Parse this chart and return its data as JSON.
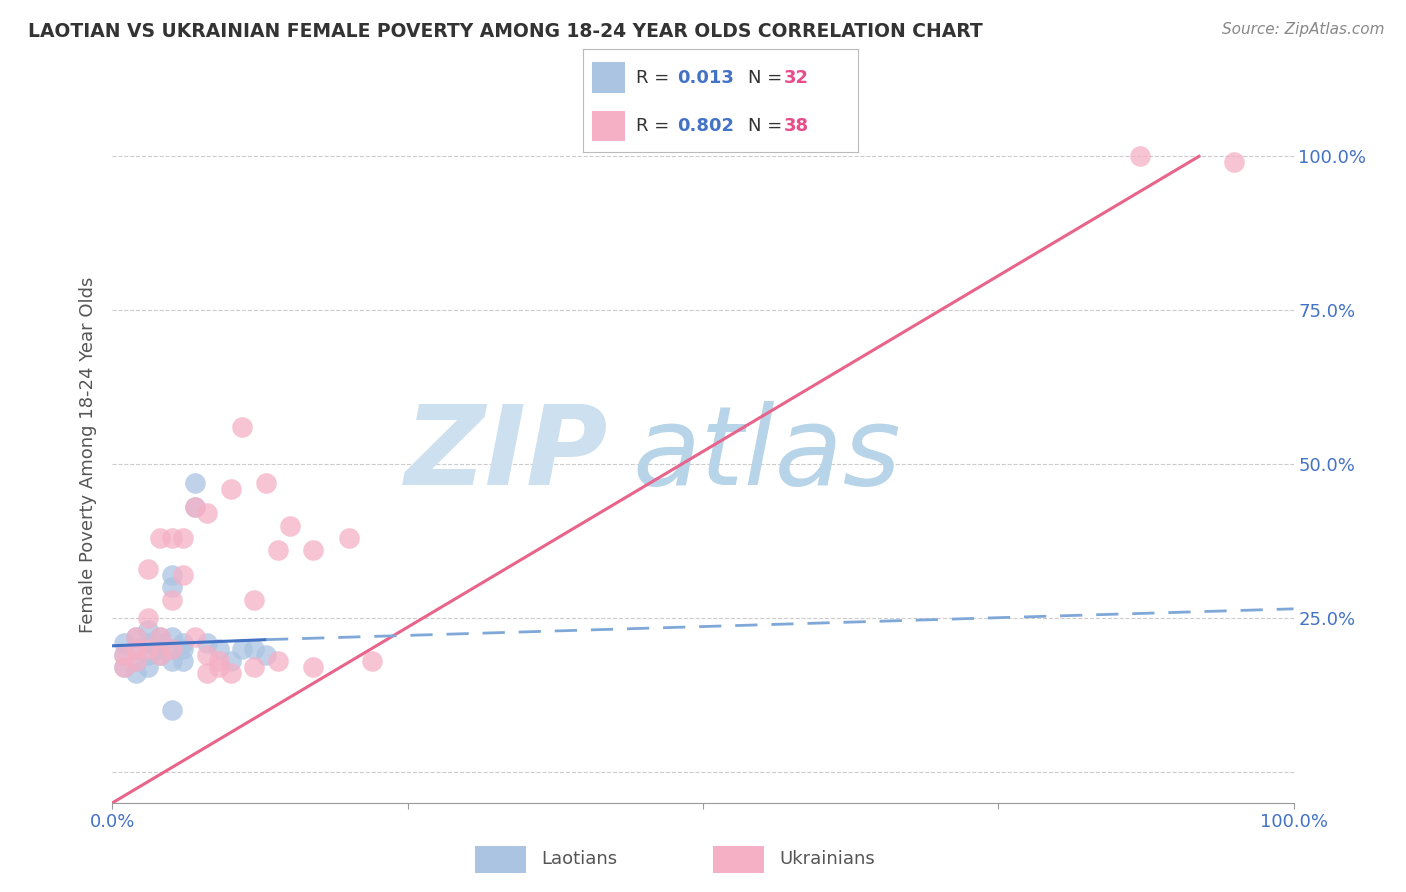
{
  "title": "LAOTIAN VS UKRAINIAN FEMALE POVERTY AMONG 18-24 YEAR OLDS CORRELATION CHART",
  "source": "Source: ZipAtlas.com",
  "ylabel": "Female Poverty Among 18-24 Year Olds",
  "xlim": [
    0,
    1.0
  ],
  "ylim": [
    -0.05,
    1.08
  ],
  "legend_r1": "R = 0.013",
  "legend_n1": "N = 32",
  "legend_r2": "R = 0.802",
  "legend_n2": "N = 38",
  "laotian_color": "#aac4e2",
  "ukrainian_color": "#f5b0c5",
  "trend_laotian_solid_color": "#4472c4",
  "trend_laotian_dash_color": "#7fa8d8",
  "trend_ukrainian_color": "#e8648a",
  "watermark_zip_color": "#cce0f0",
  "watermark_atlas_color": "#b8d4e8",
  "background_color": "#ffffff",
  "laotian_x": [
    0.01,
    0.01,
    0.01,
    0.02,
    0.02,
    0.02,
    0.02,
    0.03,
    0.03,
    0.03,
    0.03,
    0.04,
    0.04,
    0.04,
    0.04,
    0.05,
    0.05,
    0.05,
    0.05,
    0.05,
    0.06,
    0.06,
    0.06,
    0.07,
    0.07,
    0.08,
    0.09,
    0.1,
    0.11,
    0.12,
    0.13,
    0.05
  ],
  "laotian_y": [
    0.19,
    0.21,
    0.17,
    0.2,
    0.18,
    0.22,
    0.16,
    0.21,
    0.19,
    0.23,
    0.17,
    0.2,
    0.22,
    0.19,
    0.21,
    0.3,
    0.32,
    0.18,
    0.22,
    0.2,
    0.2,
    0.18,
    0.21,
    0.43,
    0.47,
    0.21,
    0.2,
    0.18,
    0.2,
    0.2,
    0.19,
    0.1
  ],
  "ukrainian_x": [
    0.01,
    0.01,
    0.02,
    0.02,
    0.02,
    0.03,
    0.03,
    0.03,
    0.04,
    0.04,
    0.04,
    0.05,
    0.05,
    0.05,
    0.06,
    0.06,
    0.07,
    0.07,
    0.08,
    0.08,
    0.09,
    0.1,
    0.11,
    0.12,
    0.13,
    0.14,
    0.15,
    0.17,
    0.2,
    0.22,
    0.08,
    0.09,
    0.1,
    0.12,
    0.14,
    0.17,
    0.87,
    0.95
  ],
  "ukrainian_y": [
    0.19,
    0.17,
    0.22,
    0.18,
    0.2,
    0.33,
    0.25,
    0.2,
    0.38,
    0.22,
    0.19,
    0.38,
    0.28,
    0.2,
    0.38,
    0.32,
    0.43,
    0.22,
    0.19,
    0.42,
    0.18,
    0.46,
    0.56,
    0.28,
    0.47,
    0.36,
    0.4,
    0.36,
    0.38,
    0.18,
    0.16,
    0.17,
    0.16,
    0.17,
    0.18,
    0.17,
    1.0,
    0.99
  ],
  "trend_ukrainian_x0": 0.0,
  "trend_ukrainian_y0": -0.05,
  "trend_ukrainian_x1": 0.92,
  "trend_ukrainian_y1": 1.0,
  "trend_laotian_solid_x0": 0.0,
  "trend_laotian_solid_y0": 0.205,
  "trend_laotian_solid_x1": 0.13,
  "trend_laotian_solid_y1": 0.215,
  "trend_laotian_dash_x0": 0.13,
  "trend_laotian_dash_y0": 0.215,
  "trend_laotian_dash_x1": 1.0,
  "trend_laotian_dash_y1": 0.265
}
